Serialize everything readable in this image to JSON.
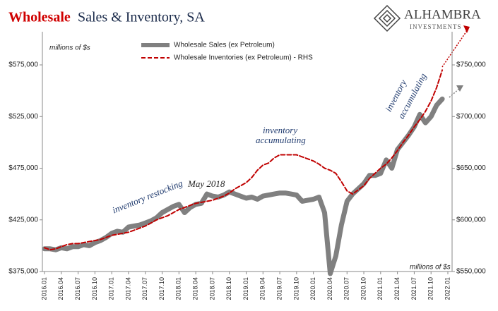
{
  "chart_data": {
    "type": "line",
    "title_highlight": "Wholesale",
    "title": "Sales & Inventory, SA",
    "logo": {
      "name": "ALHAMBRA",
      "tagline": "INVESTMENTS"
    },
    "y_unit_label": "millions of $s",
    "y2_unit_label": "millions of $s",
    "annotations": [
      "inventory restocking",
      "May 2018",
      "inventory",
      "accumulating",
      "inventory",
      "accumulating"
    ],
    "categories": [
      "2016.01",
      null,
      null,
      "2016.04",
      null,
      null,
      "2016.07",
      null,
      null,
      "2016.10",
      null,
      null,
      "2017.01",
      null,
      null,
      "2017.04",
      null,
      null,
      "2017.07",
      null,
      null,
      "2017.10",
      null,
      null,
      "2018.01",
      null,
      null,
      "2018.04",
      null,
      null,
      "2018.07",
      null,
      null,
      "2018.10",
      null,
      null,
      "2019.01",
      null,
      null,
      "2019.04",
      null,
      null,
      "2019.07",
      null,
      null,
      "2019.10",
      null,
      null,
      "2020.01",
      null,
      null,
      "2020.04",
      null,
      null,
      "2020.07",
      null,
      null,
      "2020.10",
      null,
      null,
      "2021.01",
      null,
      null,
      "2021.04",
      null,
      null,
      "2021.07",
      null,
      null,
      "2021.10",
      null,
      null,
      "2022.01"
    ],
    "series": [
      {
        "name": "Wholesale Sales (ex Petroleum)",
        "color": "#808080",
        "axis": "y",
        "values": [
          397000,
          397000,
          396000,
          398000,
          397000,
          399000,
          399000,
          401000,
          400000,
          403000,
          405000,
          408000,
          412000,
          414000,
          413000,
          418000,
          419000,
          420000,
          422000,
          424000,
          427000,
          432000,
          435000,
          438000,
          440000,
          432000,
          437000,
          440000,
          441000,
          450000,
          448000,
          447000,
          449000,
          452000,
          450000,
          448000,
          446000,
          447000,
          445000,
          448000,
          449000,
          450000,
          451000,
          451000,
          450000,
          449000,
          443000,
          444000,
          445000,
          447000,
          432000,
          373000,
          390000,
          420000,
          443000,
          450000,
          455000,
          460000,
          468000,
          468000,
          470000,
          483000,
          475000,
          493000,
          500000,
          507000,
          515000,
          527000,
          519000,
          525000,
          536000,
          542000,
          null
        ]
      },
      {
        "name": "Wholesale Inventories (ex Petroleum) - RHS",
        "color": "#c00000",
        "axis": "y2",
        "values": [
          573000,
          571000,
          572000,
          574000,
          576000,
          577000,
          577000,
          578000,
          579000,
          580000,
          581000,
          583000,
          585000,
          586000,
          587000,
          588000,
          590000,
          592000,
          594000,
          597000,
          600000,
          602000,
          604000,
          607000,
          610000,
          612000,
          614000,
          616000,
          617000,
          618000,
          619000,
          621000,
          623000,
          626000,
          630000,
          633000,
          636000,
          641000,
          648000,
          653000,
          655000,
          660000,
          663000,
          663000,
          663000,
          663000,
          661000,
          659000,
          657000,
          654000,
          650000,
          648000,
          645000,
          637000,
          628000,
          625000,
          629000,
          633000,
          640000,
          645000,
          650000,
          654000,
          660000,
          667000,
          675000,
          682000,
          690000,
          697000,
          705000,
          715000,
          728000,
          745000,
          null
        ]
      }
    ],
    "ylim": [
      375000,
      600000
    ],
    "yticks": [
      {
        "value": 375000,
        "label": "$375,000"
      },
      {
        "value": 425000,
        "label": "$425,000"
      },
      {
        "value": 475000,
        "label": "$475,000"
      },
      {
        "value": 525000,
        "label": "$525,000"
      },
      {
        "value": 575000,
        "label": "$575,000"
      }
    ],
    "y2lim": [
      550000,
      775000
    ],
    "y2ticks": [
      {
        "value": 550000,
        "label": "$550,000"
      },
      {
        "value": 600000,
        "label": "$600,000"
      },
      {
        "value": 650000,
        "label": "$650,000"
      },
      {
        "value": 700000,
        "label": "$700,000"
      },
      {
        "value": 750000,
        "label": "$750,000"
      }
    ]
  }
}
